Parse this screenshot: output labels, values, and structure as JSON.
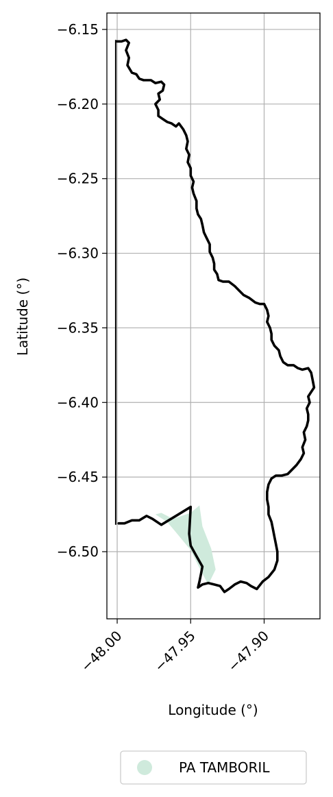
{
  "chart_data": {
    "type": "map",
    "xlabel": "Longitude (°)",
    "ylabel": "Latitude (°)",
    "xlim": [
      -48.007,
      -47.862
    ],
    "ylim": [
      -6.545,
      -6.139
    ],
    "grid": true,
    "xticks": [
      {
        "value": -48.0,
        "label": "−48.00"
      },
      {
        "value": -47.95,
        "label": "−47.95"
      },
      {
        "value": -47.9,
        "label": "−47.90"
      }
    ],
    "yticks": [
      {
        "value": -6.15,
        "label": "−6.15"
      },
      {
        "value": -6.2,
        "label": "−6.20"
      },
      {
        "value": -6.25,
        "label": "−6.25"
      },
      {
        "value": -6.3,
        "label": "−6.30"
      },
      {
        "value": -6.35,
        "label": "−6.35"
      },
      {
        "value": -6.4,
        "label": "−6.40"
      },
      {
        "value": -6.45,
        "label": "−6.45"
      },
      {
        "value": -6.5,
        "label": "−6.50"
      }
    ],
    "legend": {
      "placement": "bottom-center",
      "entries": [
        {
          "label": "PA TAMBORIL",
          "color": "#cfeadc"
        }
      ]
    },
    "area_polygon": {
      "name": "PA TAMBORIL",
      "color": "#cfeadc",
      "coords": [
        [
          -47.974,
          -6.475
        ],
        [
          -47.97,
          -6.474
        ],
        [
          -47.962,
          -6.478
        ],
        [
          -47.95,
          -6.474
        ],
        [
          -47.944,
          -6.469
        ],
        [
          -47.942,
          -6.483
        ],
        [
          -47.936,
          -6.498
        ],
        [
          -47.933,
          -6.512
        ],
        [
          -47.938,
          -6.522
        ],
        [
          -47.943,
          -6.513
        ],
        [
          -47.95,
          -6.499
        ],
        [
          -47.96,
          -6.487
        ],
        [
          -47.966,
          -6.48
        ],
        [
          -47.974,
          -6.475
        ]
      ]
    },
    "outline_main": {
      "color": "#000000",
      "coords": [
        [
          -48.0,
          -6.158
        ],
        [
          -47.997,
          -6.158
        ],
        [
          -47.994,
          -6.157
        ],
        [
          -47.992,
          -6.159
        ],
        [
          -47.994,
          -6.164
        ],
        [
          -47.992,
          -6.169
        ],
        [
          -47.993,
          -6.174
        ],
        [
          -47.99,
          -6.179
        ],
        [
          -47.987,
          -6.18
        ],
        [
          -47.985,
          -6.183
        ],
        [
          -47.982,
          -6.184
        ],
        [
          -47.977,
          -6.184
        ],
        [
          -47.974,
          -6.186
        ],
        [
          -47.97,
          -6.185
        ],
        [
          -47.968,
          -6.187
        ],
        [
          -47.969,
          -6.191
        ],
        [
          -47.972,
          -6.193
        ],
        [
          -47.971,
          -6.197
        ],
        [
          -47.974,
          -6.2
        ],
        [
          -47.972,
          -6.204
        ],
        [
          -47.972,
          -6.208
        ],
        [
          -47.969,
          -6.21
        ],
        [
          -47.966,
          -6.212
        ],
        [
          -47.963,
          -6.213
        ],
        [
          -47.96,
          -6.215
        ],
        [
          -47.958,
          -6.213
        ],
        [
          -47.955,
          -6.217
        ],
        [
          -47.953,
          -6.221
        ],
        [
          -47.952,
          -6.225
        ],
        [
          -47.953,
          -6.23
        ],
        [
          -47.951,
          -6.234
        ],
        [
          -47.952,
          -6.239
        ],
        [
          -47.95,
          -6.243
        ],
        [
          -47.95,
          -6.248
        ],
        [
          -47.948,
          -6.252
        ],
        [
          -47.949,
          -6.256
        ],
        [
          -47.948,
          -6.26
        ],
        [
          -47.946,
          -6.265
        ],
        [
          -47.946,
          -6.27
        ],
        [
          -47.945,
          -6.274
        ],
        [
          -47.943,
          -6.277
        ],
        [
          -47.942,
          -6.281
        ],
        [
          -47.941,
          -6.286
        ],
        [
          -47.939,
          -6.29
        ],
        [
          -47.937,
          -6.294
        ],
        [
          -47.937,
          -6.299
        ],
        [
          -47.935,
          -6.303
        ],
        [
          -47.934,
          -6.307
        ],
        [
          -47.934,
          -6.311
        ],
        [
          -47.932,
          -6.314
        ],
        [
          -47.931,
          -6.318
        ],
        [
          -47.928,
          -6.319
        ],
        [
          -47.924,
          -6.319
        ],
        [
          -47.92,
          -6.322
        ],
        [
          -47.917,
          -6.325
        ],
        [
          -47.914,
          -6.328
        ],
        [
          -47.91,
          -6.33
        ],
        [
          -47.906,
          -6.333
        ],
        [
          -47.903,
          -6.334
        ],
        [
          -47.9,
          -6.334
        ],
        [
          -47.898,
          -6.338
        ],
        [
          -47.897,
          -6.342
        ],
        [
          -47.898,
          -6.346
        ],
        [
          -47.896,
          -6.35
        ],
        [
          -47.895,
          -6.354
        ],
        [
          -47.895,
          -6.358
        ],
        [
          -47.893,
          -6.362
        ],
        [
          -47.89,
          -6.365
        ],
        [
          -47.889,
          -6.369
        ],
        [
          -47.887,
          -6.373
        ],
        [
          -47.884,
          -6.375
        ],
        [
          -47.88,
          -6.375
        ],
        [
          -47.877,
          -6.377
        ],
        [
          -47.874,
          -6.378
        ],
        [
          -47.87,
          -6.377
        ],
        [
          -47.868,
          -6.38
        ],
        [
          -47.867,
          -6.385
        ],
        [
          -47.866,
          -6.39
        ],
        [
          -47.868,
          -6.393
        ],
        [
          -47.87,
          -6.396
        ],
        [
          -47.869,
          -6.4
        ],
        [
          -47.871,
          -6.404
        ],
        [
          -47.87,
          -6.408
        ],
        [
          -47.87,
          -6.412
        ],
        [
          -47.871,
          -6.416
        ],
        [
          -47.873,
          -6.42
        ],
        [
          -47.872,
          -6.425
        ],
        [
          -47.874,
          -6.43
        ],
        [
          -47.873,
          -6.434
        ],
        [
          -47.875,
          -6.438
        ],
        [
          -47.878,
          -6.442
        ],
        [
          -47.881,
          -6.445
        ],
        [
          -47.884,
          -6.448
        ],
        [
          -47.888,
          -6.449
        ],
        [
          -47.892,
          -6.449
        ],
        [
          -47.895,
          -6.451
        ],
        [
          -47.897,
          -6.455
        ],
        [
          -47.898,
          -6.46
        ],
        [
          -47.898,
          -6.465
        ],
        [
          -47.897,
          -6.47
        ],
        [
          -47.897,
          -6.475
        ],
        [
          -47.895,
          -6.48
        ],
        [
          -47.894,
          -6.485
        ],
        [
          -47.893,
          -6.49
        ],
        [
          -47.892,
          -6.495
        ],
        [
          -47.891,
          -6.5
        ],
        [
          -47.891,
          -6.506
        ],
        [
          -47.893,
          -6.512
        ],
        [
          -47.897,
          -6.517
        ],
        [
          -47.901,
          -6.52
        ],
        [
          -47.905,
          -6.525
        ],
        [
          -47.909,
          -6.523
        ],
        [
          -47.912,
          -6.521
        ],
        [
          -47.916,
          -6.52
        ],
        [
          -47.92,
          -6.522
        ],
        [
          -47.924,
          -6.525
        ],
        [
          -47.927,
          -6.527
        ],
        [
          -47.93,
          -6.523
        ],
        [
          -47.934,
          -6.522
        ],
        [
          -47.938,
          -6.521
        ],
        [
          -47.942,
          -6.522
        ],
        [
          -47.945,
          -6.524
        ],
        [
          -47.944,
          -6.52
        ],
        [
          -47.943,
          -6.515
        ],
        [
          -47.942,
          -6.51
        ],
        [
          -47.946,
          -6.503
        ],
        [
          -47.95,
          -6.496
        ],
        [
          -47.951,
          -6.488
        ],
        [
          -47.95,
          -6.47
        ],
        [
          -47.96,
          -6.476
        ],
        [
          -47.97,
          -6.482
        ],
        [
          -47.976,
          -6.478
        ],
        [
          -47.98,
          -6.476
        ],
        [
          -47.985,
          -6.479
        ],
        [
          -47.99,
          -6.479
        ],
        [
          -47.995,
          -6.481
        ],
        [
          -47.999,
          -6.481
        ]
      ]
    },
    "outline_west": {
      "color": "#000000",
      "coords": [
        [
          -48.001,
          -6.157
        ],
        [
          -48.001,
          -6.482
        ]
      ]
    }
  }
}
